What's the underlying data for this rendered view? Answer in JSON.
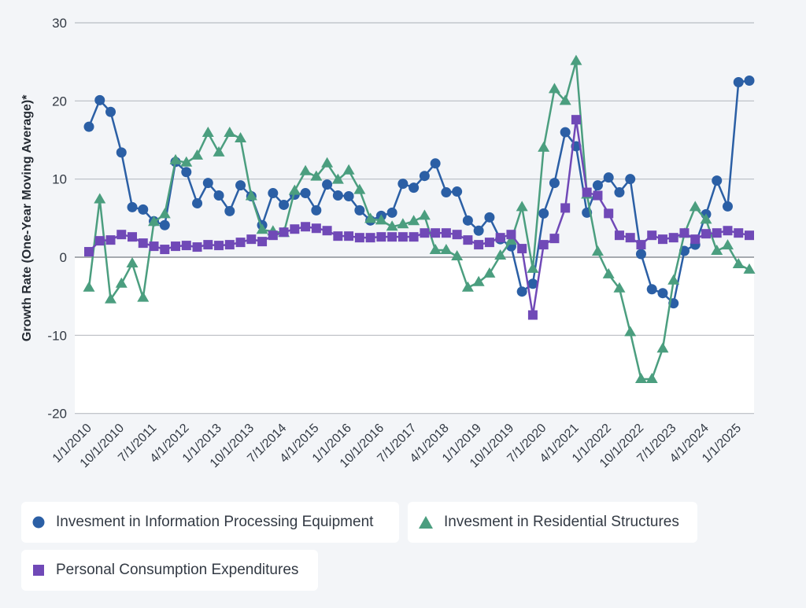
{
  "chart_data": {
    "type": "line",
    "title": "",
    "xlabel": "",
    "ylabel": "Growth Rate (One-Year Moving Average)*",
    "ylim": [
      -20,
      30
    ],
    "yticks": [
      "30",
      "20",
      "10",
      "0",
      "-10",
      "-20"
    ],
    "ytick_values": [
      30,
      20,
      10,
      0,
      -10,
      -20
    ],
    "grid": true,
    "legend_position": "bottom",
    "xtick_labels": [
      "1/1/2010",
      "10/1/2010",
      "7/1/2011",
      "4/1/2012",
      "1/1/2013",
      "10/1/2013",
      "7/1/2014",
      "4/1/2015",
      "1/1/2016",
      "10/1/2016",
      "7/1/2017",
      "4/1/2018",
      "1/1/2019",
      "10/1/2019",
      "7/1/2020",
      "4/1/2021",
      "1/1/2022",
      "10/1/2022",
      "7/1/2023",
      "4/1/2024",
      "1/1/2025"
    ],
    "x": [
      "1/1/2010",
      "4/1/2010",
      "7/1/2010",
      "10/1/2010",
      "1/1/2011",
      "4/1/2011",
      "7/1/2011",
      "10/1/2011",
      "1/1/2012",
      "4/1/2012",
      "7/1/2012",
      "10/1/2012",
      "1/1/2013",
      "4/1/2013",
      "7/1/2013",
      "10/1/2013",
      "1/1/2014",
      "4/1/2014",
      "7/1/2014",
      "10/1/2014",
      "1/1/2015",
      "4/1/2015",
      "7/1/2015",
      "10/1/2015",
      "1/1/2016",
      "4/1/2016",
      "7/1/2016",
      "10/1/2016",
      "1/1/2017",
      "4/1/2017",
      "7/1/2017",
      "10/1/2017",
      "1/1/2018",
      "4/1/2018",
      "7/1/2018",
      "10/1/2018",
      "1/1/2019",
      "4/1/2019",
      "7/1/2019",
      "10/1/2019",
      "1/1/2020",
      "4/1/2020",
      "7/1/2020",
      "10/1/2020",
      "1/1/2021",
      "4/1/2021",
      "7/1/2021",
      "10/1/2021",
      "1/1/2022",
      "4/1/2022",
      "7/1/2022",
      "10/1/2022",
      "1/1/2023",
      "4/1/2023",
      "7/1/2023",
      "10/1/2023",
      "1/1/2024",
      "4/1/2024",
      "7/1/2024",
      "10/1/2024",
      "1/1/2025",
      "4/1/2025"
    ],
    "series": [
      {
        "name": "Invesment in Information Processing Equipment",
        "color": "#2b5fa5",
        "marker": "circle",
        "values": [
          16.7,
          20.1,
          18.6,
          13.4,
          6.4,
          6.1,
          4.6,
          4.1,
          12.2,
          10.9,
          6.9,
          9.5,
          7.9,
          5.9,
          9.2,
          7.8,
          4.1,
          8.2,
          6.7,
          8.0,
          8.2,
          6.0,
          9.3,
          7.9,
          7.8,
          6.0,
          4.7,
          5.3,
          5.7,
          9.4,
          8.9,
          10.4,
          12.0,
          8.3,
          8.4,
          4.7,
          3.4,
          5.1,
          2.3,
          1.4,
          -4.4,
          -3.4,
          5.6,
          9.5,
          16.0,
          14.2,
          5.7,
          9.2,
          10.2,
          8.3,
          10.0,
          0.4,
          -4.1,
          -4.6,
          -5.9,
          0.8,
          1.6,
          5.5,
          9.8,
          6.5,
          22.4,
          22.6
        ]
      },
      {
        "name": "Invesment in Residential Structures",
        "color": "#4b9e7f",
        "marker": "triangle",
        "values": [
          -3.9,
          7.4,
          -5.4,
          -3.4,
          -0.8,
          -5.2,
          4.5,
          5.5,
          12.4,
          12.1,
          13.0,
          15.9,
          13.4,
          15.9,
          15.2,
          7.8,
          3.5,
          3.3,
          3.1,
          8.5,
          11.0,
          10.3,
          12.0,
          9.9,
          11.1,
          8.6,
          4.9,
          4.7,
          3.9,
          4.2,
          4.6,
          5.3,
          0.9,
          0.9,
          0.1,
          -3.9,
          -3.2,
          -2.1,
          0.2,
          2.1,
          6.4,
          -1.5,
          14.0,
          21.5,
          20.0,
          25.1,
          8.0,
          0.7,
          -2.2,
          -4.0,
          -9.6,
          -15.6,
          -15.6,
          -11.7,
          -3.0,
          3.0,
          6.4,
          4.8,
          0.8,
          1.5,
          -0.9,
          -1.6
        ]
      },
      {
        "name": "Personal Consumption Expenditures",
        "color": "#7049b7",
        "marker": "square",
        "values": [
          0.7,
          2.1,
          2.2,
          2.9,
          2.6,
          1.8,
          1.4,
          1.0,
          1.4,
          1.5,
          1.3,
          1.6,
          1.5,
          1.6,
          1.9,
          2.3,
          2.0,
          2.8,
          3.2,
          3.6,
          3.9,
          3.7,
          3.4,
          2.7,
          2.7,
          2.5,
          2.5,
          2.6,
          2.6,
          2.6,
          2.6,
          3.1,
          3.1,
          3.1,
          2.9,
          2.2,
          1.6,
          1.9,
          2.5,
          2.9,
          1.1,
          -7.4,
          1.6,
          2.4,
          6.3,
          17.6,
          8.3,
          7.9,
          5.6,
          2.8,
          2.5,
          1.6,
          2.8,
          2.3,
          2.5,
          3.1,
          2.3,
          3.0,
          3.1,
          3.4,
          3.1,
          2.8
        ]
      }
    ]
  }
}
